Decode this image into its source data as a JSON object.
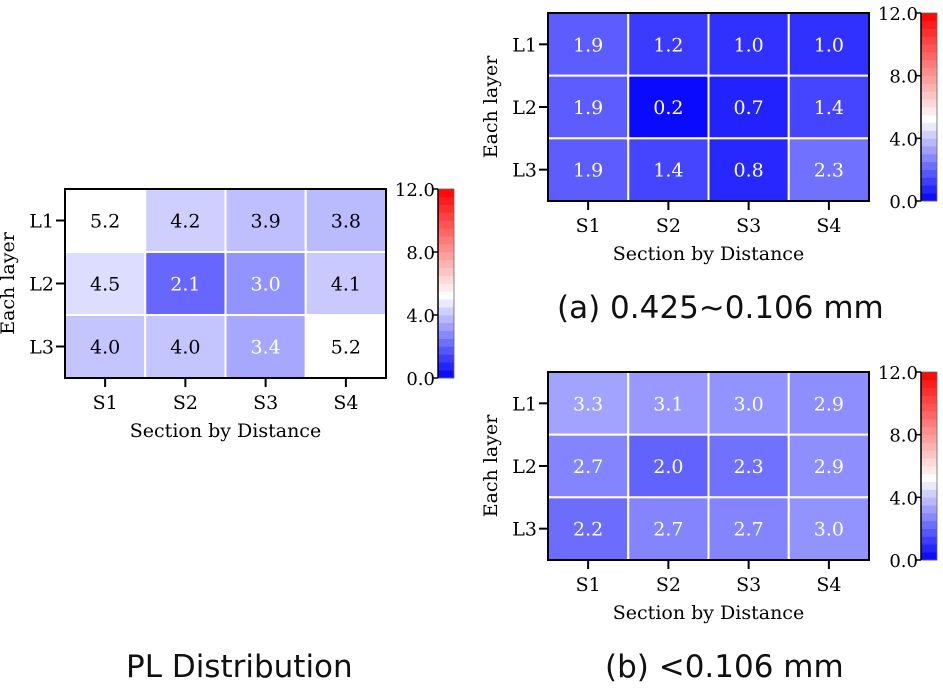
{
  "colors": {
    "high": "#ff0000",
    "mid": "#ffffff",
    "low": "#0000ff",
    "frame": "#000000",
    "cell_border": "#ffffff"
  },
  "captions": {
    "pl": "PL Distribution",
    "a": "(a) 0.425~0.106 mm",
    "b": "(b) <0.106 mm"
  },
  "chart_data": [
    {
      "id": "pl",
      "type": "heatmap",
      "title": "",
      "xlabel": "Section by Distance",
      "ylabel": "Each layer",
      "columns": [
        "S1",
        "S2",
        "S3",
        "S4"
      ],
      "rows": [
        "L1",
        "L2",
        "L3"
      ],
      "values": [
        [
          5.2,
          4.2,
          3.9,
          3.8
        ],
        [
          4.5,
          2.1,
          3.0,
          4.1
        ],
        [
          4.0,
          4.0,
          3.4,
          5.2
        ]
      ],
      "labels": [
        [
          "5.2",
          "4.2",
          "3.9",
          "3.8"
        ],
        [
          "4.5",
          "2.1",
          "3.0",
          "4.1"
        ],
        [
          "4.0",
          "4.0",
          "3.4",
          "5.2"
        ]
      ],
      "colorbar": {
        "range": [
          0,
          12
        ],
        "ticks": [
          "0.0",
          "4.0",
          "8.0",
          "12.0"
        ],
        "tick_values": [
          0,
          4,
          8,
          12
        ],
        "midpoint": 5.2
      }
    },
    {
      "id": "a",
      "type": "heatmap",
      "title": "",
      "xlabel": "Section by Distance",
      "ylabel": "Each layer",
      "columns": [
        "S1",
        "S2",
        "S3",
        "S4"
      ],
      "rows": [
        "L1",
        "L2",
        "L3"
      ],
      "values": [
        [
          1.9,
          1.2,
          1.0,
          1.0
        ],
        [
          1.9,
          0.2,
          0.7,
          1.4
        ],
        [
          1.9,
          1.4,
          0.8,
          2.3
        ]
      ],
      "labels": [
        [
          "1.9",
          "1.2",
          "1.0",
          "1.0"
        ],
        [
          "1.9",
          "0.2",
          "0.7",
          "1.4"
        ],
        [
          "1.9",
          "1.4",
          "0.8",
          "2.3"
        ]
      ],
      "colorbar": {
        "range": [
          0,
          12
        ],
        "ticks": [
          "0.0",
          "4.0",
          "8.0",
          "12.0"
        ],
        "tick_values": [
          0,
          4,
          8,
          12
        ],
        "midpoint": 5.2
      }
    },
    {
      "id": "b",
      "type": "heatmap",
      "title": "",
      "xlabel": "Section by Distance",
      "ylabel": "Each layer",
      "columns": [
        "S1",
        "S2",
        "S3",
        "S4"
      ],
      "rows": [
        "L1",
        "L2",
        "L3"
      ],
      "values": [
        [
          3.3,
          3.1,
          3.0,
          2.9
        ],
        [
          2.7,
          2.0,
          2.3,
          2.9
        ],
        [
          2.2,
          2.7,
          2.7,
          3.0
        ]
      ],
      "labels": [
        [
          "3.3",
          "3.1",
          "3.0",
          "2.9"
        ],
        [
          "2.7",
          "2.0",
          "2.3",
          "2.9"
        ],
        [
          "2.2",
          "2.7",
          "2.7",
          "3.0"
        ]
      ],
      "colorbar": {
        "range": [
          0,
          12
        ],
        "ticks": [
          "0.0",
          "4.0",
          "8.0",
          "12.0"
        ],
        "tick_values": [
          0,
          4,
          8,
          12
        ],
        "midpoint": 5.2
      }
    }
  ]
}
